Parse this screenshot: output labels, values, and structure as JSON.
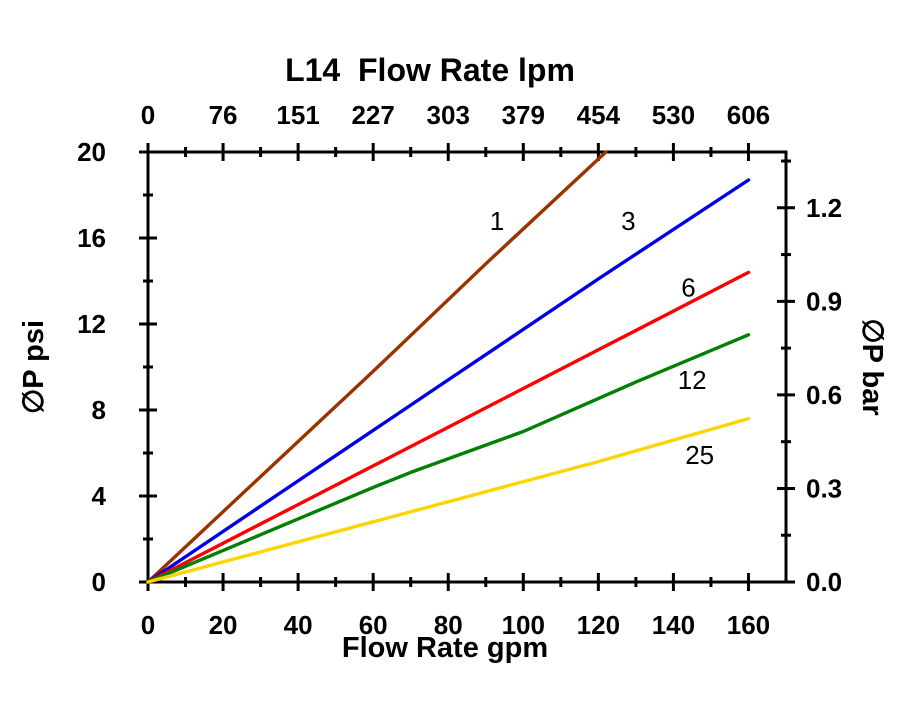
{
  "chart_data": {
    "type": "line",
    "title": "L14  Flow Rate lpm",
    "xlabel": "Flow Rate gpm",
    "ylabel_left": "∅P psi",
    "ylabel_right": "∅P bar",
    "xlim": [
      0,
      170
    ],
    "ylim_psi": [
      0,
      20
    ],
    "x_ticks_gpm": [
      0,
      20,
      40,
      60,
      80,
      100,
      120,
      140,
      160
    ],
    "x_minor_step_gpm": 10,
    "top_tick_labels_lpm": [
      "0",
      "76",
      "151",
      "227",
      "303",
      "379",
      "454",
      "530",
      "606"
    ],
    "y_ticks_psi": [
      0,
      4,
      8,
      12,
      16,
      20
    ],
    "y_minor_step_psi": 2,
    "right_ticks_bar": [
      "0.0",
      "0.3",
      "0.6",
      "0.9",
      "1.2"
    ],
    "right_minor_step_bar": 0.15,
    "psi_per_bar": 14.5038,
    "grid": false,
    "legend": "inline-labels",
    "series": [
      {
        "name": "1",
        "color": "#993300",
        "label_pos": {
          "gpm": 93,
          "psi": 16.8
        },
        "points": [
          [
            0,
            0
          ],
          [
            30,
            4.9
          ],
          [
            60,
            9.8
          ],
          [
            90,
            14.8
          ],
          [
            122,
            20.0
          ]
        ]
      },
      {
        "name": "3",
        "color": "#0000E6",
        "label_pos": {
          "gpm": 128,
          "psi": 16.8
        },
        "points": [
          [
            0,
            0
          ],
          [
            40,
            4.7
          ],
          [
            80,
            9.4
          ],
          [
            120,
            14.1
          ],
          [
            160,
            18.7
          ]
        ]
      },
      {
        "name": "6",
        "color": "#FF0000",
        "label_pos": {
          "gpm": 144,
          "psi": 13.7
        },
        "points": [
          [
            0,
            0
          ],
          [
            40,
            3.6
          ],
          [
            80,
            7.2
          ],
          [
            120,
            10.8
          ],
          [
            160,
            14.4
          ]
        ]
      },
      {
        "name": "12",
        "color": "#008000",
        "label_pos": {
          "gpm": 145,
          "psi": 9.4
        },
        "points": [
          [
            0,
            0
          ],
          [
            30,
            2.2
          ],
          [
            60,
            4.4
          ],
          [
            70,
            5.1
          ],
          [
            100,
            7.0
          ],
          [
            130,
            9.3
          ],
          [
            160,
            11.5
          ]
        ]
      },
      {
        "name": "25",
        "color": "#FFD400",
        "label_pos": {
          "gpm": 147,
          "psi": 5.9
        },
        "points": [
          [
            0,
            0
          ],
          [
            60,
            2.8
          ],
          [
            120,
            5.6
          ],
          [
            160,
            7.6
          ]
        ]
      }
    ]
  }
}
